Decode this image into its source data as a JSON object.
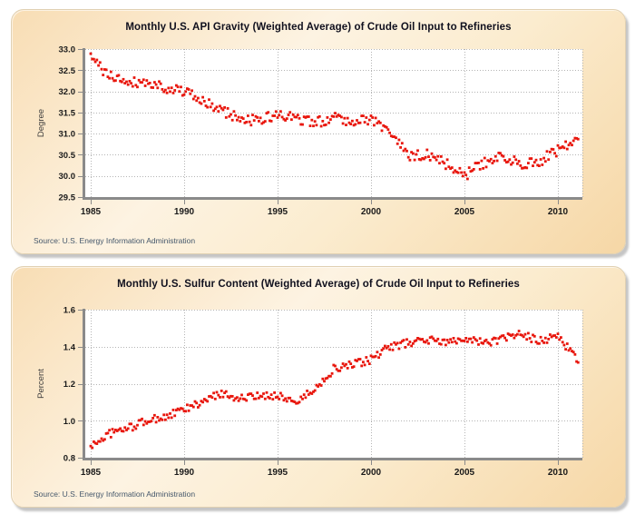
{
  "style": {
    "marker_color": "#e8160c",
    "grid_color": "#b4b4b4",
    "axis_color": "#8a8a8a",
    "tick_text_color": "#1a1a1a",
    "axis_label_color": "#3c3c3c",
    "panel_bg_light": "#fdf3e2",
    "panel_bg_dark": "#f6d7a6",
    "plot_bg": "#ffffff",
    "source_text_color": "#44576b"
  },
  "chart_data": [
    {
      "type": "scatter",
      "title": "Monthly U.S. API Gravity (Weighted Average) of Crude Oil Input to Refineries",
      "ylabel": "Degree",
      "source": "Source: U.S. Energy Information Administration",
      "x_ticks": [
        1985,
        1990,
        1995,
        2000,
        2005,
        2010
      ],
      "y_ticks": [
        33.0,
        32.5,
        32.0,
        31.5,
        31.0,
        30.5,
        30.0,
        29.5
      ],
      "ylim": [
        29.5,
        33.0
      ],
      "x_range": [
        1984.71,
        2011.31
      ],
      "start_year": 1985,
      "n_months": 314,
      "frequency": "monthly",
      "grid": true,
      "legend": "none",
      "annual_anchor_values": [
        32.8,
        32.35,
        32.25,
        32.2,
        32.1,
        32.0,
        31.75,
        31.55,
        31.35,
        31.3,
        31.45,
        31.35,
        31.25,
        31.4,
        31.3,
        31.35,
        31.05,
        30.45,
        30.5,
        30.3,
        30.0,
        30.3,
        30.45,
        30.3,
        30.35,
        30.6,
        30.85,
        30.85
      ],
      "monthly_noise": 0.13
    },
    {
      "type": "scatter",
      "title": "Monthly U.S. Sulfur Content (Weighted Average) of Crude Oil Input to Refineries",
      "ylabel": "Percent",
      "source": "Source: U.S. Energy Information Administration",
      "x_ticks": [
        1985,
        1990,
        1995,
        2000,
        2005,
        2010
      ],
      "y_ticks": [
        1.6,
        1.4,
        1.2,
        1.0,
        0.8
      ],
      "ylim": [
        0.8,
        1.6
      ],
      "x_range": [
        1984.71,
        2011.31
      ],
      "start_year": 1985,
      "n_months": 314,
      "frequency": "monthly",
      "grid": true,
      "legend": "none",
      "annual_anchor_values": [
        0.86,
        0.93,
        0.96,
        1.0,
        1.02,
        1.06,
        1.1,
        1.15,
        1.12,
        1.13,
        1.14,
        1.1,
        1.17,
        1.28,
        1.3,
        1.33,
        1.4,
        1.42,
        1.44,
        1.42,
        1.45,
        1.42,
        1.44,
        1.47,
        1.43,
        1.46,
        1.33,
        1.33
      ],
      "monthly_noise": 0.022
    }
  ]
}
